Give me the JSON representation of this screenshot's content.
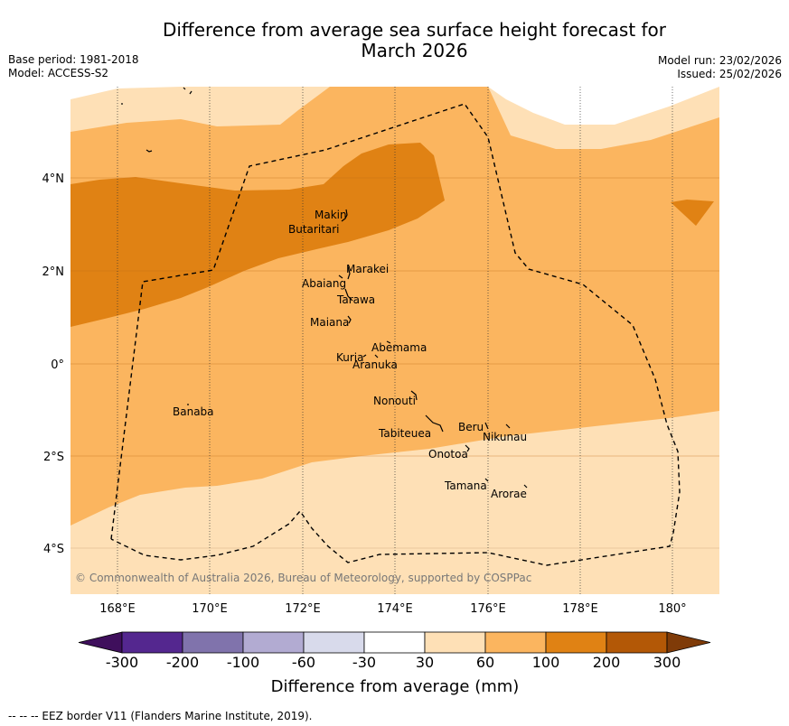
{
  "title": {
    "line1": "Difference from average sea surface height forecast for",
    "line2": "March 2026"
  },
  "meta_left": {
    "base_period": "Base period: 1981-2018",
    "model": "Model: ACCESS-S2"
  },
  "meta_right": {
    "model_run": "Model run: 23/02/2026",
    "issued": "Issued: 25/02/2026"
  },
  "axes": {
    "lat_labels": [
      "4°N",
      "2°N",
      "0°",
      "2°S",
      "4°S"
    ],
    "lon_labels": [
      "168°E",
      "170°E",
      "172°E",
      "174°E",
      "176°E",
      "178°E",
      "180°"
    ]
  },
  "places": [
    {
      "name": "Makin"
    },
    {
      "name": "Butaritari"
    },
    {
      "name": "Marakei"
    },
    {
      "name": "Abaiang"
    },
    {
      "name": "Tarawa"
    },
    {
      "name": "Maiana"
    },
    {
      "name": "Abemama"
    },
    {
      "name": "Kuria"
    },
    {
      "name": "Aranuka"
    },
    {
      "name": "Nonouti"
    },
    {
      "name": "Banaba"
    },
    {
      "name": "Beru"
    },
    {
      "name": "Tabiteuea"
    },
    {
      "name": "Nikunau"
    },
    {
      "name": "Onotoa"
    },
    {
      "name": "Tamana"
    },
    {
      "name": "Arorae"
    }
  ],
  "copyright": "© Commonwealth of Australia 2026, Bureau of Meteorology, supported by COSPPac",
  "colorbar": {
    "ticks": [
      "-300",
      "-200",
      "-100",
      "-60",
      "-30",
      "30",
      "60",
      "100",
      "200",
      "300"
    ],
    "colors": [
      "#3f0f5c",
      "#54278f",
      "#8073ac",
      "#b2abd2",
      "#d8daeb",
      "#ffffff",
      "#fee0b6",
      "#fbb55f",
      "#e08214",
      "#b35806",
      "#7f3b08"
    ],
    "title": "Difference from average (mm)"
  },
  "footnote": "--  --  -- EEZ border V11 (Flanders Marine Institute, 2019)."
}
